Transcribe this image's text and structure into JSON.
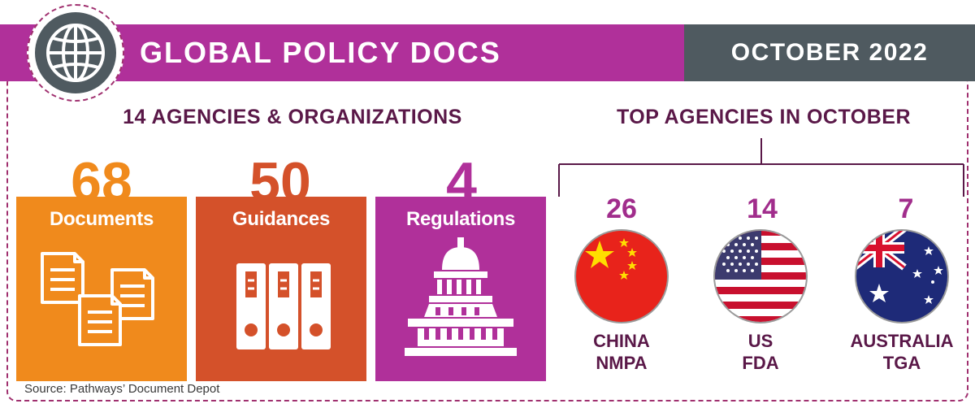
{
  "header": {
    "title": "GLOBAL POLICY DOCS",
    "date": "OCTOBER 2022"
  },
  "agencies_heading": "14 AGENCIES & ORGANIZATIONS",
  "top_heading": "TOP AGENCIES IN OCTOBER",
  "stats": [
    {
      "number": "68",
      "label": "Documents",
      "color": "#f08a1c"
    },
    {
      "number": "50",
      "label": "Guidances",
      "color": "#d4512a"
    },
    {
      "number": "4",
      "label": "Regulations",
      "color": "#b0309a"
    }
  ],
  "top_agencies": [
    {
      "count": "26",
      "line1": "CHINA",
      "line2": "NMPA"
    },
    {
      "count": "14",
      "line1": "US",
      "line2": "FDA"
    },
    {
      "count": "7",
      "line1": "AUSTRALIA",
      "line2": "TGA"
    }
  ],
  "source": "Source: Pathways’ Document Depot",
  "colors": {
    "magenta": "#b0309a",
    "slate": "#4f5a60",
    "dark_purple": "#5a1848"
  }
}
